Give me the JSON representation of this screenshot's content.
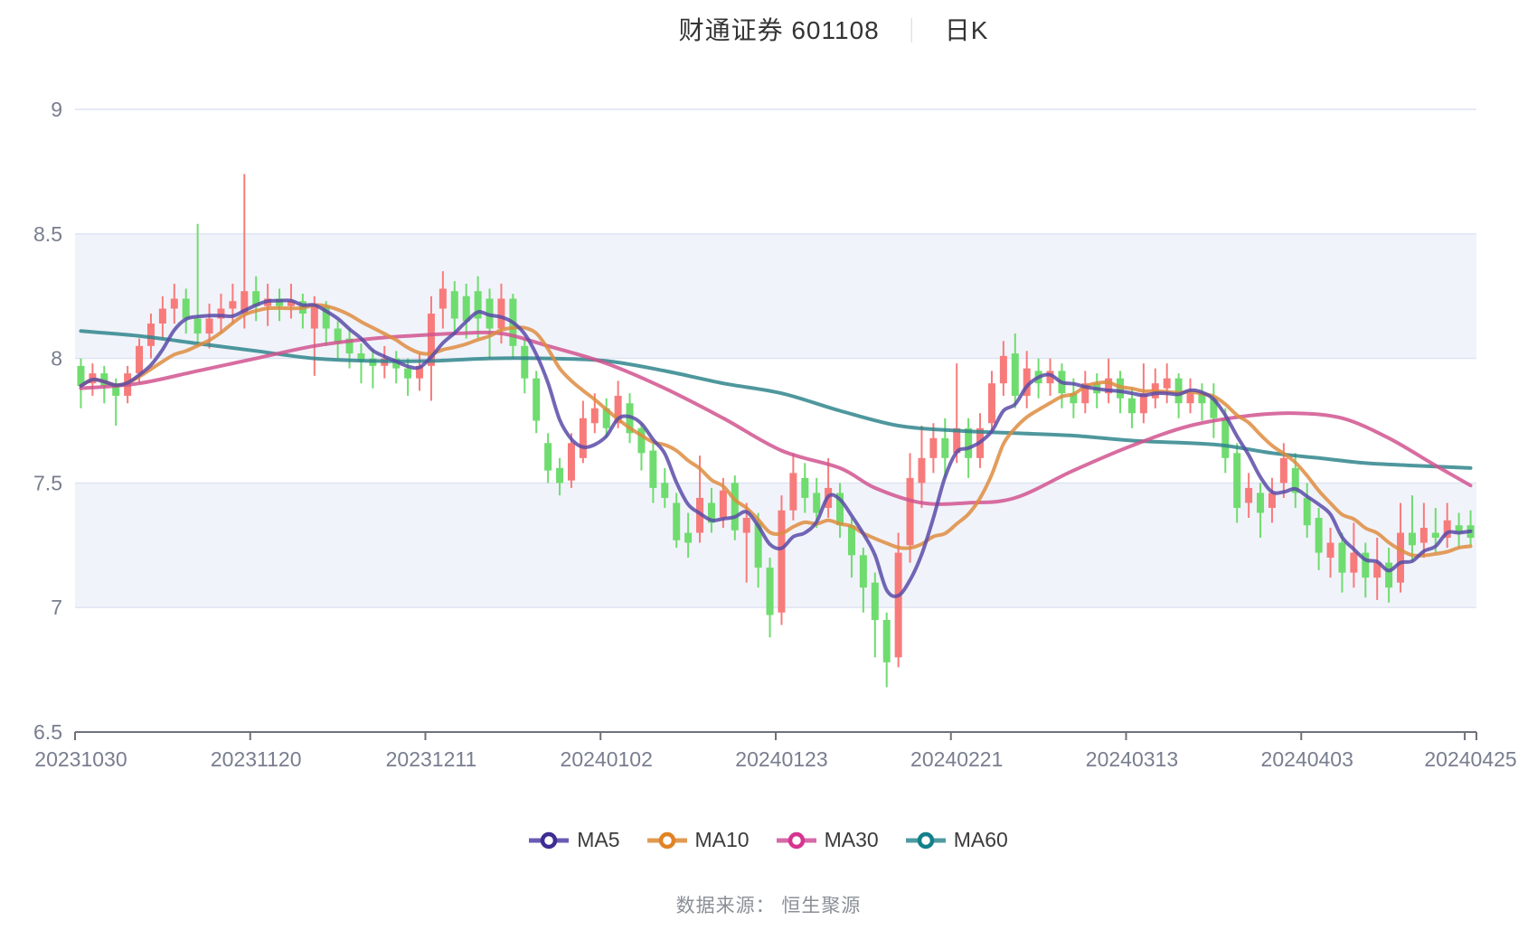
{
  "header": {
    "title": "财通证券 601108",
    "separator": "｜",
    "mode": "日K"
  },
  "source": {
    "text": "数据来源： 恒生聚源"
  },
  "legend": {
    "items": [
      {
        "label": "MA5",
        "icon_color": "#3E2D92",
        "line_color": "#6A5BB5"
      },
      {
        "label": "MA10",
        "icon_color": "#E08325",
        "line_color": "#E09A52"
      },
      {
        "label": "MA30",
        "icon_color": "#D6348F",
        "line_color": "#D66AA8"
      },
      {
        "label": "MA60",
        "icon_color": "#12808B",
        "line_color": "#4F9BA1"
      }
    ]
  },
  "chart_data": {
    "type": "candlestick",
    "title": "财通证券 601108 日K",
    "ylim": [
      6.5,
      9
    ],
    "y_ticks": [
      "9",
      "8.5",
      "8",
      "7.5",
      "7",
      "6.5"
    ],
    "y_tick_values": [
      9,
      8.5,
      8,
      7.5,
      7,
      6.5
    ],
    "x_tick_indices": [
      0,
      15,
      30,
      45,
      60,
      75,
      90,
      105,
      119
    ],
    "grid_on": true,
    "legend_position": "bottom",
    "colors": {
      "up": "#F87B7B",
      "down": "#6FDC6F",
      "ma5": "#5B4BA8",
      "ma10": "#DE8C3F",
      "ma30": "#D1538F",
      "ma60": "#2F858C",
      "band": "#F1F3FA",
      "grid": "#DCE3F1",
      "axis": "#6E717C",
      "tick_label": "#787E8F"
    },
    "dates": [
      "20231030",
      "20231031",
      "20231101",
      "20231102",
      "20231103",
      "20231106",
      "20231107",
      "20231108",
      "20231109",
      "20231110",
      "20231113",
      "20231114",
      "20231115",
      "20231116",
      "20231117",
      "20231120",
      "20231121",
      "20231122",
      "20231123",
      "20231124",
      "20231127",
      "20231128",
      "20231129",
      "20231130",
      "20231201",
      "20231204",
      "20231205",
      "20231206",
      "20231207",
      "20231208",
      "20231211",
      "20231212",
      "20231213",
      "20231214",
      "20231215",
      "20231218",
      "20231219",
      "20231220",
      "20231221",
      "20231222",
      "20231225",
      "20231226",
      "20231227",
      "20231228",
      "20231229",
      "20240102",
      "20240103",
      "20240104",
      "20240105",
      "20240108",
      "20240109",
      "20240110",
      "20240111",
      "20240112",
      "20240115",
      "20240116",
      "20240117",
      "20240118",
      "20240119",
      "20240122",
      "20240123",
      "20240124",
      "20240125",
      "20240126",
      "20240129",
      "20240130",
      "20240131",
      "20240201",
      "20240202",
      "20240205",
      "20240206",
      "20240207",
      "20240208",
      "20240219",
      "20240220",
      "20240221",
      "20240222",
      "20240223",
      "20240226",
      "20240227",
      "20240228",
      "20240229",
      "20240301",
      "20240304",
      "20240305",
      "20240306",
      "20240307",
      "20240308",
      "20240311",
      "20240312",
      "20240313",
      "20240314",
      "20240315",
      "20240318",
      "20240319",
      "20240320",
      "20240321",
      "20240322",
      "20240325",
      "20240326",
      "20240327",
      "20240328",
      "20240329",
      "20240401",
      "20240402",
      "20240403",
      "20240408",
      "20240409",
      "20240410",
      "20240411",
      "20240412",
      "20240415",
      "20240416",
      "20240417",
      "20240418",
      "20240419",
      "20240422",
      "20240423",
      "20240424",
      "20240425"
    ],
    "ohlc_order": [
      "open",
      "close",
      "low",
      "high"
    ],
    "ohlc": [
      [
        7.97,
        7.89,
        7.8,
        8.0
      ],
      [
        7.9,
        7.94,
        7.85,
        7.98
      ],
      [
        7.94,
        7.89,
        7.82,
        7.97
      ],
      [
        7.89,
        7.85,
        7.73,
        7.92
      ],
      [
        7.85,
        7.94,
        7.82,
        7.97
      ],
      [
        7.94,
        8.05,
        7.9,
        8.08
      ],
      [
        8.05,
        8.14,
        8.0,
        8.18
      ],
      [
        8.14,
        8.2,
        8.08,
        8.25
      ],
      [
        8.2,
        8.24,
        8.14,
        8.3
      ],
      [
        8.24,
        8.16,
        8.1,
        8.28
      ],
      [
        8.16,
        8.1,
        8.05,
        8.54
      ],
      [
        8.1,
        8.16,
        8.04,
        8.22
      ],
      [
        8.16,
        8.2,
        8.1,
        8.26
      ],
      [
        8.2,
        8.23,
        8.14,
        8.3
      ],
      [
        8.18,
        8.27,
        8.12,
        8.74
      ],
      [
        8.27,
        8.21,
        8.15,
        8.33
      ],
      [
        8.21,
        8.24,
        8.13,
        8.3
      ],
      [
        8.24,
        8.21,
        8.15,
        8.28
      ],
      [
        8.21,
        8.23,
        8.16,
        8.3
      ],
      [
        8.23,
        8.18,
        8.12,
        8.26
      ],
      [
        8.12,
        8.21,
        7.93,
        8.25
      ],
      [
        8.21,
        8.12,
        8.05,
        8.23
      ],
      [
        8.12,
        8.06,
        8.0,
        8.15
      ],
      [
        8.08,
        8.02,
        7.96,
        8.12
      ],
      [
        8.02,
        7.99,
        7.9,
        8.06
      ],
      [
        8.0,
        7.97,
        7.88,
        8.04
      ],
      [
        7.97,
        8.0,
        7.92,
        8.05
      ],
      [
        8.0,
        7.96,
        7.9,
        8.03
      ],
      [
        7.96,
        7.92,
        7.85,
        8.0
      ],
      [
        7.92,
        7.97,
        7.87,
        8.02
      ],
      [
        7.97,
        8.18,
        7.83,
        8.25
      ],
      [
        8.2,
        8.28,
        8.12,
        8.35
      ],
      [
        8.27,
        8.16,
        8.1,
        8.31
      ],
      [
        8.25,
        8.15,
        8.08,
        8.3
      ],
      [
        8.27,
        8.16,
        8.08,
        8.33
      ],
      [
        8.24,
        8.12,
        8.0,
        8.28
      ],
      [
        8.12,
        8.24,
        8.06,
        8.3
      ],
      [
        8.24,
        8.05,
        8.0,
        8.26
      ],
      [
        8.05,
        7.92,
        7.86,
        8.08
      ],
      [
        7.92,
        7.75,
        7.7,
        7.95
      ],
      [
        7.66,
        7.55,
        7.5,
        7.7
      ],
      [
        7.56,
        7.5,
        7.45,
        7.6
      ],
      [
        7.51,
        7.66,
        7.48,
        7.7
      ],
      [
        7.6,
        7.76,
        7.58,
        7.83
      ],
      [
        7.74,
        7.8,
        7.7,
        7.86
      ],
      [
        7.8,
        7.72,
        7.68,
        7.84
      ],
      [
        7.74,
        7.85,
        7.72,
        7.91
      ],
      [
        7.82,
        7.7,
        7.66,
        7.86
      ],
      [
        7.72,
        7.62,
        7.55,
        7.74
      ],
      [
        7.63,
        7.48,
        7.42,
        7.66
      ],
      [
        7.5,
        7.44,
        7.4,
        7.56
      ],
      [
        7.42,
        7.27,
        7.24,
        7.46
      ],
      [
        7.3,
        7.26,
        7.2,
        7.38
      ],
      [
        7.3,
        7.44,
        7.26,
        7.61
      ],
      [
        7.42,
        7.34,
        7.3,
        7.48
      ],
      [
        7.36,
        7.47,
        7.32,
        7.52
      ],
      [
        7.5,
        7.31,
        7.27,
        7.53
      ],
      [
        7.3,
        7.36,
        7.1,
        7.42
      ],
      [
        7.34,
        7.16,
        7.08,
        7.38
      ],
      [
        7.16,
        6.97,
        6.88,
        7.2
      ],
      [
        6.98,
        7.39,
        6.93,
        7.45
      ],
      [
        7.39,
        7.54,
        7.35,
        7.62
      ],
      [
        7.52,
        7.44,
        7.38,
        7.58
      ],
      [
        7.46,
        7.38,
        7.32,
        7.52
      ],
      [
        7.4,
        7.48,
        7.36,
        7.6
      ],
      [
        7.46,
        7.33,
        7.28,
        7.5
      ],
      [
        7.33,
        7.21,
        7.12,
        7.36
      ],
      [
        7.21,
        7.08,
        6.98,
        7.24
      ],
      [
        7.1,
        6.95,
        6.8,
        7.14
      ],
      [
        6.95,
        6.78,
        6.68,
        6.98
      ],
      [
        6.8,
        7.22,
        6.76,
        7.3
      ],
      [
        7.25,
        7.52,
        7.18,
        7.62
      ],
      [
        7.5,
        7.6,
        7.4,
        7.73
      ],
      [
        7.6,
        7.68,
        7.54,
        7.74
      ],
      [
        7.68,
        7.6,
        7.52,
        7.76
      ],
      [
        7.62,
        7.72,
        7.58,
        7.98
      ],
      [
        7.72,
        7.6,
        7.52,
        7.76
      ],
      [
        7.6,
        7.72,
        7.56,
        7.78
      ],
      [
        7.74,
        7.9,
        7.7,
        7.95
      ],
      [
        7.9,
        8.01,
        7.85,
        8.07
      ],
      [
        8.02,
        7.85,
        7.8,
        8.1
      ],
      [
        7.85,
        7.96,
        7.8,
        8.03
      ],
      [
        7.95,
        7.9,
        7.84,
        8.0
      ],
      [
        7.9,
        7.95,
        7.85,
        8.0
      ],
      [
        7.95,
        7.86,
        7.8,
        7.98
      ],
      [
        7.86,
        7.82,
        7.76,
        7.92
      ],
      [
        7.82,
        7.9,
        7.78,
        7.95
      ],
      [
        7.9,
        7.86,
        7.8,
        7.94
      ],
      [
        7.86,
        7.92,
        7.82,
        8.0
      ],
      [
        7.92,
        7.84,
        7.78,
        7.95
      ],
      [
        7.84,
        7.78,
        7.72,
        7.88
      ],
      [
        7.78,
        7.86,
        7.74,
        7.98
      ],
      [
        7.84,
        7.9,
        7.8,
        7.96
      ],
      [
        7.88,
        7.92,
        7.82,
        7.98
      ],
      [
        7.92,
        7.82,
        7.76,
        7.94
      ],
      [
        7.82,
        7.86,
        7.78,
        7.92
      ],
      [
        7.86,
        7.82,
        7.75,
        7.9
      ],
      [
        7.84,
        7.76,
        7.68,
        7.9
      ],
      [
        7.76,
        7.6,
        7.54,
        7.8
      ],
      [
        7.62,
        7.4,
        7.34,
        7.66
      ],
      [
        7.42,
        7.48,
        7.36,
        7.54
      ],
      [
        7.46,
        7.38,
        7.28,
        7.5
      ],
      [
        7.4,
        7.46,
        7.34,
        7.52
      ],
      [
        7.5,
        7.6,
        7.44,
        7.66
      ],
      [
        7.56,
        7.46,
        7.4,
        7.62
      ],
      [
        7.44,
        7.33,
        7.28,
        7.5
      ],
      [
        7.36,
        7.22,
        7.15,
        7.4
      ],
      [
        7.2,
        7.26,
        7.12,
        7.32
      ],
      [
        7.26,
        7.14,
        7.06,
        7.3
      ],
      [
        7.14,
        7.22,
        7.08,
        7.34
      ],
      [
        7.22,
        7.12,
        7.04,
        7.26
      ],
      [
        7.12,
        7.18,
        7.03,
        7.28
      ],
      [
        7.18,
        7.08,
        7.02,
        7.24
      ],
      [
        7.1,
        7.3,
        7.06,
        7.42
      ],
      [
        7.3,
        7.25,
        7.18,
        7.45
      ],
      [
        7.26,
        7.32,
        7.2,
        7.42
      ],
      [
        7.3,
        7.28,
        7.22,
        7.4
      ],
      [
        7.28,
        7.35,
        7.24,
        7.42
      ],
      [
        7.33,
        7.3,
        7.24,
        7.38
      ],
      [
        7.33,
        7.28,
        7.25,
        7.39
      ]
    ],
    "ma_window_short": [
      5,
      10
    ],
    "ma30_samples": [
      [
        0,
        7.88
      ],
      [
        5,
        7.9
      ],
      [
        10,
        7.95
      ],
      [
        15,
        8.0
      ],
      [
        20,
        8.05
      ],
      [
        25,
        8.08
      ],
      [
        28,
        8.09
      ],
      [
        32,
        8.1
      ],
      [
        36,
        8.1
      ],
      [
        40,
        8.05
      ],
      [
        45,
        7.98
      ],
      [
        50,
        7.88
      ],
      [
        55,
        7.76
      ],
      [
        60,
        7.63
      ],
      [
        65,
        7.56
      ],
      [
        68,
        7.48
      ],
      [
        72,
        7.42
      ],
      [
        76,
        7.42
      ],
      [
        80,
        7.44
      ],
      [
        85,
        7.55
      ],
      [
        90,
        7.65
      ],
      [
        95,
        7.73
      ],
      [
        100,
        7.77
      ],
      [
        104,
        7.78
      ],
      [
        108,
        7.76
      ],
      [
        112,
        7.68
      ],
      [
        116,
        7.57
      ],
      [
        119,
        7.49
      ]
    ],
    "ma60_samples": [
      [
        0,
        8.11
      ],
      [
        5,
        8.09
      ],
      [
        10,
        8.06
      ],
      [
        15,
        8.03
      ],
      [
        20,
        8.0
      ],
      [
        25,
        7.99
      ],
      [
        30,
        7.99
      ],
      [
        35,
        8.0
      ],
      [
        40,
        8.0
      ],
      [
        45,
        7.99
      ],
      [
        50,
        7.95
      ],
      [
        55,
        7.9
      ],
      [
        60,
        7.86
      ],
      [
        65,
        7.79
      ],
      [
        70,
        7.73
      ],
      [
        75,
        7.71
      ],
      [
        80,
        7.7
      ],
      [
        85,
        7.69
      ],
      [
        90,
        7.67
      ],
      [
        95,
        7.66
      ],
      [
        98,
        7.65
      ],
      [
        102,
        7.62
      ],
      [
        106,
        7.6
      ],
      [
        110,
        7.58
      ],
      [
        114,
        7.57
      ],
      [
        119,
        7.56
      ]
    ]
  }
}
